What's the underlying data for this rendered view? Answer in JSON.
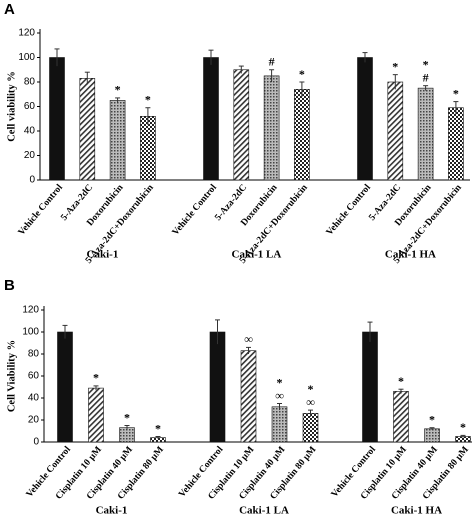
{
  "chart_data": [
    {
      "type": "bar",
      "panel": "A",
      "ylabel": "Cell viability %",
      "ylim": [
        0,
        120
      ],
      "yticks": [
        0,
        20,
        40,
        60,
        80,
        100,
        120
      ],
      "groups": [
        {
          "name": "Caki-1",
          "categories": [
            "Vehicle Control",
            "5-Aza-2dC",
            "Doxorubicin",
            "5-Aza-2dC+Doxorubicin"
          ],
          "values": [
            100,
            83,
            65,
            52
          ],
          "errors": [
            7,
            5,
            2,
            7
          ],
          "annotations": [
            [],
            [],
            [
              "*"
            ],
            [
              "*"
            ]
          ]
        },
        {
          "name": "Caki-1 LA",
          "categories": [
            "Vehicle Control",
            "5-Aza-2dC",
            "Doxorubicin",
            "5-Aza-2dC+Doxorubicin"
          ],
          "values": [
            100,
            90,
            85,
            74
          ],
          "errors": [
            6,
            3,
            5,
            6
          ],
          "annotations": [
            [],
            [],
            [
              "#"
            ],
            [
              "*"
            ]
          ]
        },
        {
          "name": "Caki-1 HA",
          "categories": [
            "Vehicle Control",
            "5-Aza-2dC",
            "Doxorubicin",
            "5-Aza-2dC+Doxorubicin"
          ],
          "values": [
            100,
            80,
            75,
            59
          ],
          "errors": [
            4,
            6,
            2,
            5
          ],
          "annotations": [
            [],
            [
              "*"
            ],
            [
              "*",
              "#"
            ],
            [
              "*"
            ]
          ]
        }
      ]
    },
    {
      "type": "bar",
      "panel": "B",
      "ylabel": "Cell Viability %",
      "ylim": [
        0,
        120
      ],
      "yticks": [
        0,
        20,
        40,
        60,
        80,
        100,
        120
      ],
      "groups": [
        {
          "name": "Caki-1",
          "categories": [
            "Vehicle Control",
            "Cisplatin 10 µM",
            "Cisplatin 40 µM",
            "Cisplatin 80 µM"
          ],
          "values": [
            100,
            49,
            13,
            4
          ],
          "errors": [
            6,
            2,
            2,
            1
          ],
          "annotations": [
            [],
            [
              "*"
            ],
            [
              "*"
            ],
            [
              "*"
            ]
          ]
        },
        {
          "name": "Caki-1 LA",
          "categories": [
            "Vehicle Control",
            "Cisplatin 10 µM",
            "Cisplatin 40 µM",
            "Cisplatin 80 µM"
          ],
          "values": [
            100,
            83,
            32,
            26
          ],
          "errors": [
            11,
            3,
            3,
            3
          ],
          "annotations": [
            [],
            [
              "∞"
            ],
            [
              "*",
              "∞"
            ],
            [
              "*",
              "∞"
            ]
          ]
        },
        {
          "name": "Caki-1 HA",
          "categories": [
            "Vehicle Control",
            "Cisplatin 10 µM",
            "Cisplatin 40 µM",
            "Cisplatin 80 µM"
          ],
          "values": [
            100,
            46,
            12,
            5
          ],
          "errors": [
            9,
            2,
            1,
            1
          ],
          "annotations": [
            [],
            [
              "*"
            ],
            [
              "*"
            ],
            [
              "*"
            ]
          ]
        }
      ]
    }
  ]
}
